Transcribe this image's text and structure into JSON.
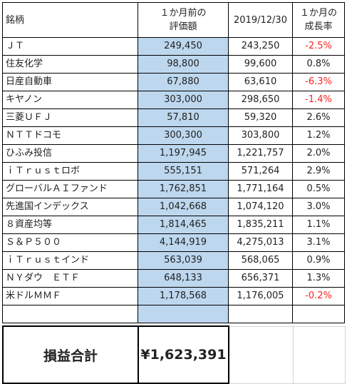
{
  "headers": {
    "name": "銘柄",
    "prev": [
      "１か月前の",
      "評価額"
    ],
    "date": "2019/12/30",
    "rate": [
      "１か月の",
      "成長率"
    ]
  },
  "rows": [
    {
      "name": "ＪＴ",
      "prev": "249,450",
      "cur": "243,250",
      "rate": "-2.5%",
      "neg": true
    },
    {
      "name": "住友化学",
      "prev": "98,800",
      "cur": "99,600",
      "rate": "0.8%",
      "neg": false
    },
    {
      "name": "日産自動車",
      "prev": "67,880",
      "cur": "63,610",
      "rate": "-6.3%",
      "neg": true
    },
    {
      "name": "キヤノン",
      "prev": "303,000",
      "cur": "298,650",
      "rate": "-1.4%",
      "neg": true
    },
    {
      "name": "三菱ＵＦＪ",
      "prev": "57,810",
      "cur": "59,320",
      "rate": "2.6%",
      "neg": false
    },
    {
      "name": "ＮＴＴドコモ",
      "prev": "300,300",
      "cur": "303,800",
      "rate": "1.2%",
      "neg": false
    },
    {
      "name": "ひふみ投信",
      "prev": "1,197,945",
      "cur": "1,221,757",
      "rate": "2.0%",
      "neg": false
    },
    {
      "name": "ｉＴｒｕｓｔロボ",
      "prev": "555,151",
      "cur": "571,264",
      "rate": "2.9%",
      "neg": false
    },
    {
      "name": "グローバルＡＩファンド",
      "prev": "1,762,851",
      "cur": "1,771,164",
      "rate": "0.5%",
      "neg": false
    },
    {
      "name": "先進国インデックス",
      "prev": "1,042,668",
      "cur": "1,074,120",
      "rate": "3.0%",
      "neg": false
    },
    {
      "name": "８資産均等",
      "prev": "1,814,465",
      "cur": "1,835,211",
      "rate": "1.1%",
      "neg": false
    },
    {
      "name": "Ｓ＆Ｐ５００",
      "prev": "4,144,919",
      "cur": "4,275,013",
      "rate": "3.1%",
      "neg": false
    },
    {
      "name": "ｉＴｒｕｓｔインド",
      "prev": "563,039",
      "cur": "568,065",
      "rate": "0.9%",
      "neg": false
    },
    {
      "name": "ＮＹダウ　ＥＴＦ",
      "prev": "648,133",
      "cur": "656,371",
      "rate": "1.3%",
      "neg": false
    },
    {
      "name": "米ドルＭＭＦ",
      "prev": "1,178,568",
      "cur": "1,176,005",
      "rate": "-0.2%",
      "neg": true
    }
  ],
  "total": {
    "label": "損益合計",
    "value": "¥1,623,391"
  },
  "colors": {
    "prev_fill": "#bdd7ee",
    "negative_text": "#ff2020"
  }
}
